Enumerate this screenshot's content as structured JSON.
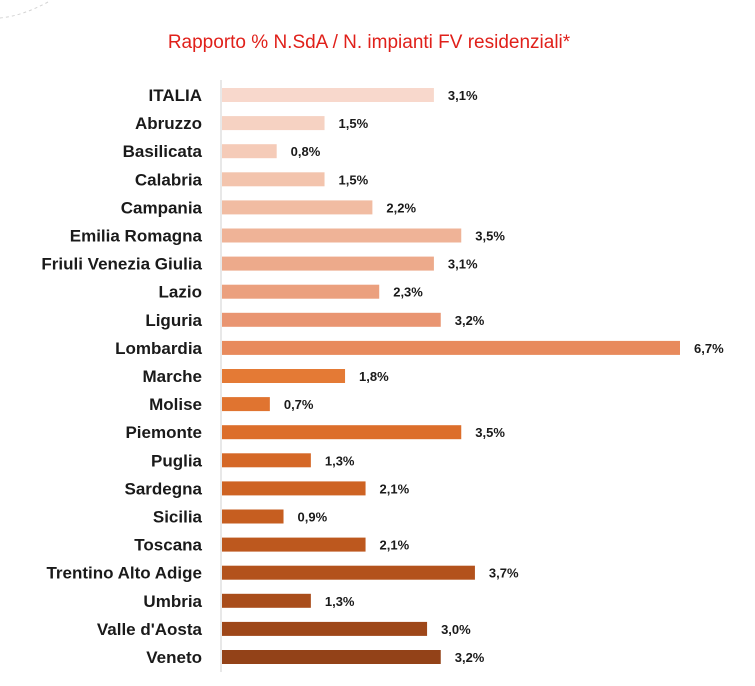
{
  "chart_data": {
    "type": "bar",
    "orientation": "horizontal",
    "title": "Rapporto %  N.SdA / N. impianti FV residenziali*",
    "categories": [
      "ITALIA",
      "Abruzzo",
      "Basilicata",
      "Calabria",
      "Campania",
      "Emilia Romagna",
      "Friuli Venezia Giulia",
      "Lazio",
      "Liguria",
      "Lombardia",
      "Marche",
      "Molise",
      "Piemonte",
      "Puglia",
      "Sardegna",
      "Sicilia",
      "Toscana",
      "Trentino Alto Adige",
      "Umbria",
      "Valle d'Aosta",
      "Veneto"
    ],
    "values": [
      3.1,
      1.5,
      0.8,
      1.5,
      2.2,
      3.5,
      3.1,
      2.3,
      3.2,
      6.7,
      1.8,
      0.7,
      3.5,
      1.3,
      2.1,
      0.9,
      2.1,
      3.7,
      1.3,
      3.0,
      3.2
    ],
    "value_labels": [
      "3,1%",
      "1,5%",
      "0,8%",
      "1,5%",
      "2,2%",
      "3,5%",
      "3,1%",
      "2,3%",
      "3,2%",
      "6,7%",
      "1,8%",
      "0,7%",
      "3,5%",
      "1,3%",
      "2,1%",
      "0,9%",
      "2,1%",
      "3,7%",
      "1,3%",
      "3,0%",
      "3,2%"
    ],
    "colors": [
      "#f8d8cc",
      "#f6d2c2",
      "#f5cbb8",
      "#f3c4ad",
      "#f1bca2",
      "#efb397",
      "#edaa8b",
      "#eba07e",
      "#e99571",
      "#e88a5c",
      "#e47a35",
      "#e07430",
      "#dc6e2b",
      "#d56827",
      "#ce6323",
      "#c65e20",
      "#bd581e",
      "#b3521c",
      "#a94d1b",
      "#9e4719",
      "#934218"
    ],
    "xlim": [
      0,
      6.7
    ],
    "grid": false,
    "legend": "none"
  }
}
